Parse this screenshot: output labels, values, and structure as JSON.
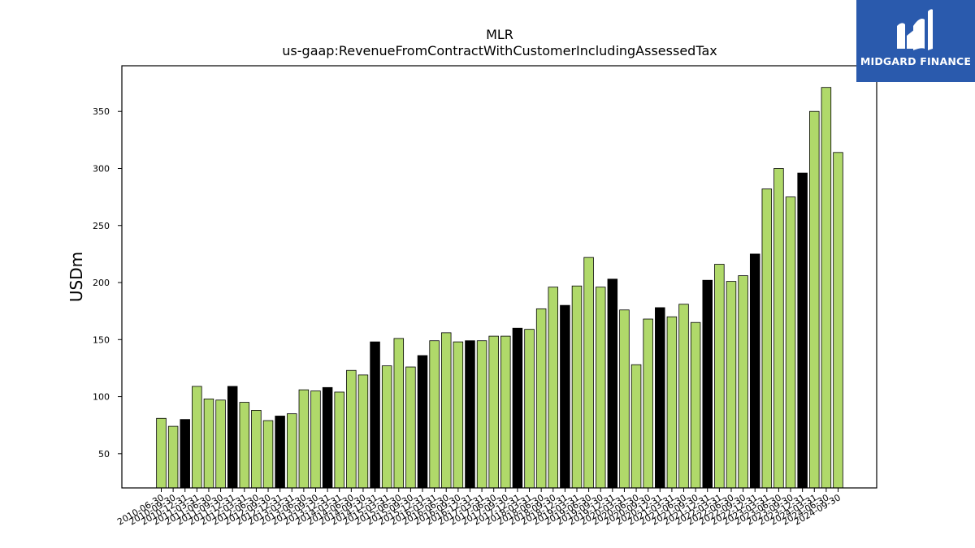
{
  "brand": {
    "name": "MIDGARD FINANCE",
    "colors": {
      "background": "#2a5aad",
      "foreground": "#ffffff"
    }
  },
  "chart_data": {
    "type": "bar",
    "title": "MLR",
    "subtitle": "us-gaap:RevenueFromContractWithCustomerIncludingAssessedTax",
    "xlabel": "",
    "ylabel": "USDm",
    "ylim": [
      20,
      390
    ],
    "yticks": [
      50,
      100,
      150,
      200,
      250,
      300,
      350
    ],
    "grid": false,
    "legend": "none",
    "colors": {
      "quarter": "#b0d96a",
      "year_end_highlight": "#000000",
      "edge": "#000000"
    },
    "categories": [
      "2010-06-30",
      "2010-09-30",
      "2010-12-31",
      "2011-03-31",
      "2011-06-30",
      "2011-09-30",
      "2011-12-31",
      "2012-03-31",
      "2012-06-30",
      "2012-09-30",
      "2012-12-31",
      "2013-03-31",
      "2013-06-30",
      "2013-09-30",
      "2013-12-31",
      "2014-03-31",
      "2014-06-30",
      "2014-09-30",
      "2014-12-31",
      "2015-03-31",
      "2015-06-30",
      "2015-09-30",
      "2015-12-31",
      "2016-03-31",
      "2016-06-30",
      "2016-09-30",
      "2016-12-31",
      "2017-03-31",
      "2017-06-30",
      "2017-09-30",
      "2017-12-31",
      "2018-03-31",
      "2018-06-30",
      "2018-09-30",
      "2018-12-31",
      "2019-03-31",
      "2019-06-30",
      "2019-09-30",
      "2019-12-31",
      "2020-03-31",
      "2020-06-30",
      "2020-09-30",
      "2020-12-31",
      "2021-03-31",
      "2021-06-30",
      "2021-09-30",
      "2021-12-31",
      "2022-03-31",
      "2022-06-30",
      "2022-09-30",
      "2022-12-31",
      "2023-03-31",
      "2023-06-30",
      "2023-09-30",
      "2023-12-31",
      "2024-03-31",
      "2024-06-30",
      "2024-09-30"
    ],
    "values": [
      81,
      74,
      80,
      109,
      98,
      97,
      109,
      95,
      88,
      79,
      83,
      85,
      106,
      105,
      108,
      104,
      123,
      119,
      148,
      127,
      151,
      126,
      136,
      149,
      156,
      148,
      149,
      149,
      153,
      153,
      160,
      159,
      177,
      196,
      180,
      197,
      222,
      196,
      203,
      176,
      128,
      168,
      178,
      170,
      181,
      165,
      202,
      216,
      201,
      206,
      225,
      282,
      300,
      275,
      296,
      350,
      371,
      314
    ],
    "highlight": [
      false,
      false,
      true,
      false,
      false,
      false,
      true,
      false,
      false,
      false,
      true,
      false,
      false,
      false,
      true,
      false,
      false,
      false,
      true,
      false,
      false,
      false,
      true,
      false,
      false,
      false,
      true,
      false,
      false,
      false,
      true,
      false,
      false,
      false,
      true,
      false,
      false,
      false,
      true,
      false,
      false,
      false,
      true,
      false,
      false,
      false,
      true,
      false,
      false,
      false,
      true,
      false,
      false,
      false,
      true,
      false,
      false,
      false
    ]
  }
}
